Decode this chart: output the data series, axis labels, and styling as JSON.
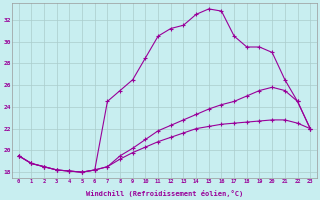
{
  "xlabel": "Windchill (Refroidissement éolien,°C)",
  "background_color": "#c8eef0",
  "line_color": "#990099",
  "grid_color": "#aacccc",
  "xlim": [
    -0.5,
    23.5
  ],
  "ylim": [
    17.5,
    33.5
  ],
  "yticks": [
    18,
    20,
    22,
    24,
    26,
    28,
    30,
    32
  ],
  "xticks": [
    0,
    1,
    2,
    3,
    4,
    5,
    6,
    7,
    8,
    9,
    10,
    11,
    12,
    13,
    14,
    15,
    16,
    17,
    18,
    19,
    20,
    21,
    22,
    23
  ],
  "line1_x": [
    0,
    1,
    2,
    3,
    4,
    5,
    6,
    7,
    8,
    9,
    10,
    11,
    12,
    13,
    14,
    15,
    16,
    17,
    18,
    19,
    20,
    21,
    22,
    23
  ],
  "line1_y": [
    19.5,
    18.8,
    18.5,
    18.2,
    18.1,
    18.0,
    18.2,
    18.5,
    19.2,
    19.8,
    20.3,
    20.8,
    21.2,
    21.6,
    22.0,
    22.2,
    22.4,
    22.5,
    22.6,
    22.7,
    22.8,
    22.8,
    22.5,
    22.0
  ],
  "line2_x": [
    0,
    1,
    2,
    3,
    4,
    5,
    6,
    7,
    8,
    9,
    10,
    11,
    12,
    13,
    14,
    15,
    16,
    17,
    18,
    19,
    20,
    21,
    22,
    23
  ],
  "line2_y": [
    19.5,
    18.8,
    18.5,
    18.2,
    18.1,
    18.0,
    18.2,
    18.5,
    19.5,
    20.2,
    21.0,
    21.8,
    22.3,
    22.8,
    23.3,
    23.8,
    24.2,
    24.5,
    25.0,
    25.5,
    25.8,
    25.5,
    24.5,
    22.0
  ],
  "line3_x": [
    0,
    1,
    2,
    3,
    4,
    5,
    6,
    7,
    8,
    9,
    10,
    11,
    12,
    13,
    14,
    15,
    16,
    17,
    18,
    19,
    20,
    21,
    22,
    23
  ],
  "line3_y": [
    19.5,
    18.8,
    18.5,
    18.2,
    18.1,
    18.0,
    18.2,
    24.5,
    25.5,
    26.5,
    28.5,
    30.5,
    31.2,
    31.5,
    32.5,
    33.0,
    32.8,
    30.5,
    29.5,
    29.5,
    29.0,
    26.5,
    24.5,
    22.0
  ]
}
